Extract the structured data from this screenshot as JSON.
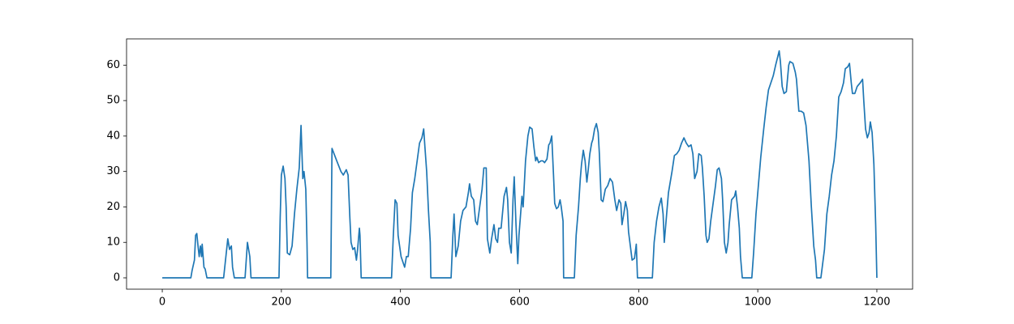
{
  "chart_data": {
    "type": "line",
    "color": "#1f77b4",
    "grid": false,
    "x": [
      0,
      48,
      50,
      54,
      56,
      58,
      60,
      62,
      64,
      66,
      67,
      70,
      72,
      75,
      103,
      110,
      113,
      116,
      118,
      121,
      139,
      143,
      147,
      149,
      196,
      198,
      200,
      203,
      206,
      208,
      210,
      214,
      218,
      222,
      226,
      230,
      233,
      236,
      238,
      241,
      243,
      244,
      283,
      285,
      293,
      300,
      304,
      309,
      312,
      315,
      317,
      320,
      323,
      326,
      328,
      331,
      332,
      334,
      385,
      388,
      391,
      394,
      396,
      401,
      405,
      407,
      410,
      413,
      417,
      420,
      424,
      428,
      432,
      436,
      439,
      441,
      444,
      447,
      450,
      451,
      485,
      488,
      490,
      493,
      497,
      501,
      505,
      510,
      514,
      516,
      519,
      523,
      526,
      529,
      533,
      537,
      540,
      544,
      546,
      550,
      553,
      557,
      560,
      563,
      565,
      569,
      574,
      578,
      580,
      583,
      586,
      589,
      591,
      594,
      597,
      599,
      604,
      606,
      610,
      614,
      617,
      621,
      624,
      627,
      629,
      632,
      636,
      639,
      642,
      646,
      649,
      651,
      654,
      657,
      659,
      662,
      665,
      668,
      670,
      673,
      674,
      692,
      695,
      699,
      702,
      704,
      707,
      710,
      713,
      715,
      718,
      721,
      723,
      726,
      729,
      732,
      734,
      737,
      740,
      744,
      748,
      752,
      756,
      760,
      763,
      767,
      770,
      772,
      775,
      778,
      781,
      783,
      786,
      789,
      793,
      796,
      798,
      823,
      826,
      830,
      834,
      838,
      841,
      843,
      846,
      850,
      856,
      860,
      864,
      868,
      872,
      876,
      880,
      884,
      888,
      891,
      894,
      898,
      901,
      905,
      907,
      910,
      913,
      915,
      918,
      921,
      925,
      929,
      932,
      935,
      939,
      941,
      944,
      947,
      950,
      952,
      956,
      961,
      963,
      966,
      969,
      971,
      974,
      990,
      993,
      997,
      1001,
      1005,
      1010,
      1014,
      1018,
      1022,
      1026,
      1030,
      1033,
      1036,
      1038,
      1041,
      1044,
      1048,
      1052,
      1054,
      1059,
      1063,
      1065,
      1069,
      1073,
      1077,
      1081,
      1086,
      1090,
      1094,
      1097,
      1099,
      1106,
      1112,
      1116,
      1120,
      1124,
      1128,
      1132,
      1136,
      1140,
      1144,
      1147,
      1151,
      1154,
      1157,
      1159,
      1163,
      1167,
      1172,
      1176,
      1178,
      1181,
      1184,
      1187,
      1189,
      1192,
      1195,
      1198,
      1200
    ],
    "values": [
      0,
      0,
      2,
      5,
      12,
      12.5,
      9,
      6,
      9,
      6,
      9.5,
      3,
      2.5,
      0,
      0,
      11,
      8,
      9,
      3,
      0,
      0,
      10,
      6,
      0,
      0,
      17,
      29,
      31.5,
      28,
      20,
      7,
      6.5,
      9,
      18,
      25,
      31,
      43,
      28,
      30,
      25,
      10,
      0,
      0,
      36.5,
      33,
      30,
      29,
      30.5,
      29,
      17,
      10,
      8,
      8.5,
      5,
      8,
      14,
      12,
      0,
      0,
      12,
      22,
      21,
      12,
      6,
      4,
      3,
      6,
      6,
      14,
      24,
      28,
      33,
      38,
      39.5,
      42,
      37,
      30,
      19,
      10,
      0,
      0,
      12,
      18,
      6,
      9,
      16,
      19,
      20,
      24,
      26.5,
      23,
      22,
      16,
      15,
      20,
      25,
      31,
      31,
      11,
      7,
      11,
      15,
      11,
      10,
      14,
      14,
      23,
      25.5,
      22,
      10,
      7,
      22,
      28.5,
      15,
      4,
      12,
      23,
      20,
      33,
      40,
      42.5,
      42,
      37,
      33,
      34,
      32.5,
      33,
      33,
      32.5,
      33.5,
      37.5,
      38,
      40,
      29,
      21,
      19.5,
      20,
      22,
      20,
      16,
      0,
      0,
      12,
      20,
      28,
      32,
      36,
      33,
      27,
      30,
      35,
      38,
      39,
      42,
      43.5,
      41,
      35,
      22,
      21.5,
      25,
      26,
      28,
      27,
      22,
      19,
      22,
      21,
      15,
      18,
      21.5,
      19,
      13,
      9,
      5,
      5.5,
      9.5,
      0,
      0,
      10,
      16,
      20,
      22.5,
      18,
      10,
      16,
      24,
      30,
      34.5,
      35,
      36,
      38,
      39.5,
      38,
      37,
      37.5,
      35,
      28,
      30,
      35,
      34.5,
      31,
      23,
      12,
      10,
      11,
      16,
      21,
      26,
      30.5,
      31,
      28,
      22,
      10,
      7,
      10,
      15,
      22,
      23,
      24.5,
      20,
      14,
      6,
      0,
      0,
      7,
      18,
      26,
      34,
      42,
      48,
      53,
      55,
      57,
      60,
      62,
      64,
      61,
      54,
      52,
      52.5,
      60,
      61,
      60.5,
      58,
      56,
      47,
      47,
      46.5,
      43,
      33,
      20,
      9,
      5,
      0,
      0,
      8,
      18,
      23,
      29,
      33,
      40,
      51,
      52.5,
      55,
      59,
      59.5,
      60.5,
      55,
      52,
      52,
      54,
      55,
      56,
      50,
      42,
      39.5,
      41,
      44,
      41,
      32,
      15,
      0
    ],
    "xlim": [
      -60,
      1260
    ],
    "ylim": [
      -3.2,
      67.4
    ],
    "xticks": [
      0,
      200,
      400,
      600,
      800,
      1000,
      1200
    ],
    "yticks": [
      0,
      10,
      20,
      30,
      40,
      50,
      60
    ]
  }
}
